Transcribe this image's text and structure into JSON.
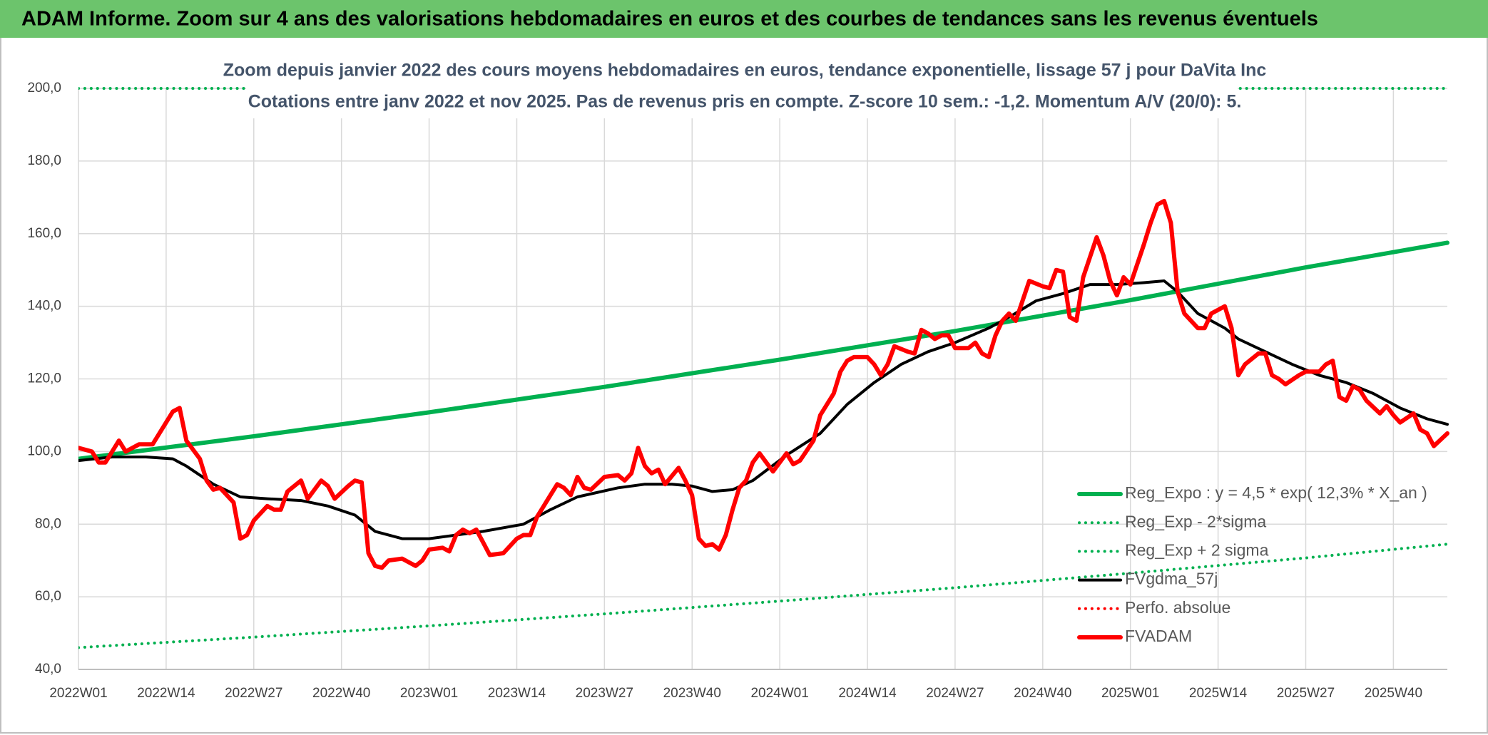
{
  "chart_data": {
    "type": "line",
    "title": "ADAM Informe. Zoom sur 4 ans des valorisations hebdomadaires en euros et des courbes de tendances sans les revenus éventuels",
    "subtitle": [
      "Zoom depuis janvier 2022 des cours moyens hebdomadaires en euros, tendance exponentielle, lissage 57 j pour DaVita Inc",
      "Cotations entre janv 2022 et nov 2025. Pas de revenus pris en compte. Z-score 10 sem.: -1,2. Momentum A/V (20/0): 5."
    ],
    "xlim": [
      0,
      203
    ],
    "xticks": [
      {
        "value": 0,
        "label": "2022W01"
      },
      {
        "value": 13,
        "label": "2022W14"
      },
      {
        "value": 26,
        "label": "2022W27"
      },
      {
        "value": 39,
        "label": "2022W40"
      },
      {
        "value": 52,
        "label": "2023W01"
      },
      {
        "value": 65,
        "label": "2023W14"
      },
      {
        "value": 78,
        "label": "2023W27"
      },
      {
        "value": 91,
        "label": "2023W40"
      },
      {
        "value": 104,
        "label": "2024W01"
      },
      {
        "value": 117,
        "label": "2024W14"
      },
      {
        "value": 130,
        "label": "2024W27"
      },
      {
        "value": 143,
        "label": "2024W40"
      },
      {
        "value": 156,
        "label": "2025W01"
      },
      {
        "value": 169,
        "label": "2025W14"
      },
      {
        "value": 182,
        "label": "2025W27"
      },
      {
        "value": 195,
        "label": "2025W40"
      }
    ],
    "ylim": [
      40,
      200
    ],
    "yticks": [
      {
        "value": 40,
        "label": "40,0"
      },
      {
        "value": 60,
        "label": "60,0"
      },
      {
        "value": 80,
        "label": "80,0"
      },
      {
        "value": 100,
        "label": "100,0"
      },
      {
        "value": 120,
        "label": "120,0"
      },
      {
        "value": 140,
        "label": "140,0"
      },
      {
        "value": 160,
        "label": "160,0"
      },
      {
        "value": 180,
        "label": "180,0"
      },
      {
        "value": 200,
        "label": "200,0"
      }
    ],
    "grid": true,
    "legend": "right",
    "series": [
      {
        "name": "Reg_Expo : y = 4,5 * exp( 12,3% *  X_an )",
        "color": "#00b050",
        "style": "solid",
        "width": 6,
        "x": [
          0,
          26,
          52,
          78,
          104,
          130,
          156,
          182,
          203
        ],
        "values": [
          98,
          104.2,
          110.8,
          117.8,
          125.3,
          133.2,
          141.7,
          150.7,
          157.5
        ]
      },
      {
        "name": "Reg_Exp - 2*sigma",
        "color": "#00b050",
        "style": "dotted",
        "width": 4,
        "x": [
          0,
          26,
          52,
          78,
          104,
          130,
          156,
          182,
          203
        ],
        "values": [
          46,
          48.9,
          52,
          55.3,
          58.8,
          62.5,
          66.5,
          70.7,
          74.5
        ]
      },
      {
        "name": "Reg_Exp + 2 sigma",
        "color": "#00b050",
        "style": "dotted",
        "width": 4,
        "x": [
          0,
          203
        ],
        "values": [
          200,
          200
        ]
      },
      {
        "name": "FVgdma_57j",
        "color": "#000000",
        "style": "solid",
        "width": 4,
        "x": [
          0,
          5,
          10,
          14,
          16,
          20,
          24,
          28,
          33,
          37,
          41,
          44,
          48,
          52,
          56,
          60,
          66,
          70,
          74,
          80,
          84,
          88,
          91,
          94,
          97,
          100,
          105,
          110,
          114,
          118,
          122,
          126,
          130,
          135,
          138,
          142,
          146,
          150,
          154,
          158,
          161,
          163,
          166,
          170,
          172,
          176,
          180,
          184,
          188,
          192,
          196,
          200,
          203
        ],
        "values": [
          97.5,
          98.5,
          98.5,
          98,
          96,
          91,
          87.5,
          87,
          86.5,
          85,
          82.5,
          78,
          76,
          76,
          77,
          78,
          80,
          84,
          87.5,
          90,
          91,
          91,
          90.5,
          89,
          89.5,
          92,
          99,
          105,
          113,
          119,
          124,
          127.5,
          130,
          134,
          137,
          141.5,
          143.5,
          146,
          146,
          146.5,
          147,
          144,
          138,
          134,
          131,
          127.5,
          124,
          121,
          119,
          116,
          112,
          109,
          107.5
        ]
      },
      {
        "name": "Perfo. absolue",
        "color": "#ff0000",
        "style": "dotted",
        "width": 4,
        "x": [],
        "values": []
      },
      {
        "name": "FVADAM",
        "color": "#ff0000",
        "style": "solid",
        "width": 6,
        "x": [
          0,
          2,
          3,
          4,
          6,
          7,
          9,
          11,
          12,
          14,
          15,
          16,
          18,
          19,
          20,
          21,
          23,
          24,
          25,
          26,
          28,
          29,
          30,
          31,
          33,
          34,
          36,
          37,
          38,
          40,
          41,
          42,
          43,
          44,
          45,
          46,
          48,
          49,
          50,
          51,
          52,
          54,
          55,
          56,
          57,
          58,
          59,
          60,
          61,
          63,
          65,
          66,
          67,
          68,
          69,
          70,
          71,
          72,
          73,
          74,
          75,
          76,
          78,
          80,
          81,
          82,
          83,
          84,
          85,
          86,
          87,
          89,
          90,
          91,
          92,
          93,
          94,
          95,
          96,
          97,
          98,
          99,
          100,
          101,
          102,
          103,
          105,
          106,
          107,
          109,
          110,
          112,
          113,
          114,
          115,
          117,
          118,
          119,
          120,
          121,
          123,
          124,
          125,
          126,
          127,
          128,
          129,
          130,
          132,
          133,
          134,
          135,
          136,
          137,
          138,
          139,
          141,
          143,
          144,
          145,
          146,
          147,
          148,
          149,
          151,
          152,
          153,
          154,
          155,
          156,
          158,
          159,
          160,
          161,
          162,
          163,
          164,
          166,
          167,
          168,
          170,
          171,
          172,
          173,
          175,
          176,
          177,
          178,
          179,
          181,
          182,
          184,
          185,
          186,
          187,
          188,
          189,
          190,
          191,
          193,
          194,
          195,
          196,
          198,
          199,
          200,
          201,
          203
        ],
        "values": [
          101,
          100,
          97,
          97,
          103,
          100,
          102,
          102,
          105,
          111,
          112,
          103,
          98,
          92,
          89.5,
          90,
          86,
          76,
          77,
          81,
          85,
          84,
          84,
          89,
          92,
          87,
          92,
          90.5,
          87,
          90.5,
          92,
          91.5,
          72,
          68.5,
          68,
          70,
          70.5,
          69.5,
          68.5,
          70,
          73,
          73.5,
          72.5,
          77,
          78.5,
          77.5,
          78.5,
          75,
          71.5,
          72,
          76,
          77,
          77,
          82,
          85,
          88,
          91,
          90,
          88,
          93,
          90,
          89.5,
          93,
          93.5,
          92,
          94,
          101,
          96,
          94,
          95,
          91,
          95.5,
          92,
          88,
          76,
          74,
          74.5,
          73,
          77,
          84,
          90,
          92,
          97,
          99.5,
          97,
          94.5,
          99.5,
          96.5,
          97.5,
          103,
          110,
          116,
          122,
          125,
          126,
          126,
          124,
          121,
          124,
          129,
          127.5,
          127,
          133.5,
          132.5,
          131,
          132,
          132,
          128.5,
          128.5,
          130,
          127,
          126,
          132,
          136,
          138,
          136,
          147,
          145.5,
          145,
          150,
          149.5,
          137,
          136,
          148,
          159,
          154,
          147,
          143,
          148,
          146,
          157,
          163,
          168,
          169,
          163,
          144,
          138,
          134,
          134,
          138,
          140,
          134,
          121,
          124,
          127,
          127,
          121,
          120,
          118.5,
          121,
          122,
          122,
          124,
          125,
          115,
          114,
          118,
          117,
          114,
          110.5,
          112.5,
          110,
          108,
          110.5,
          106,
          105,
          101.5,
          105
        ]
      }
    ]
  }
}
